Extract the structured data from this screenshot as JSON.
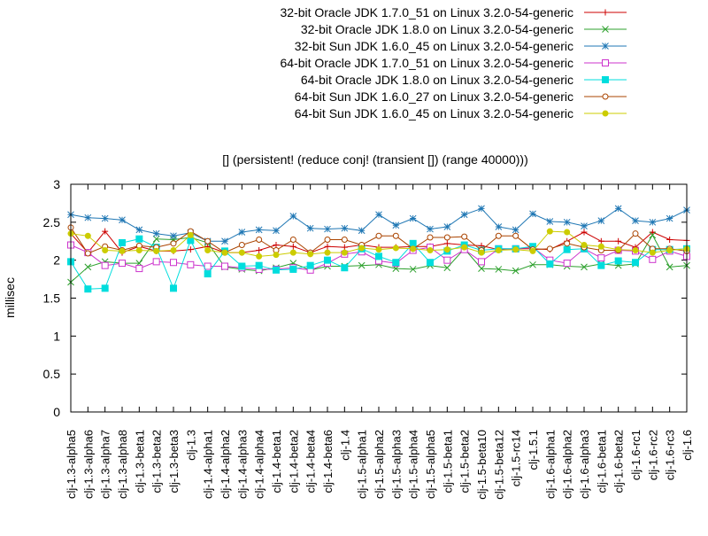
{
  "chart_data": {
    "type": "line",
    "title": "[] (persistent! (reduce conj! (transient []) (range 40000)))",
    "xlabel": "",
    "ylabel": "millisec",
    "ylim": [
      0,
      3
    ],
    "yticks": [
      "0",
      "0.5",
      "1",
      "1.5",
      "2",
      "2.5",
      "3"
    ],
    "grid": false,
    "legend_position": "top-right",
    "categories": [
      "clj-1.3-alpha5",
      "clj-1.3-alpha6",
      "clj-1.3-alpha7",
      "clj-1.3-alpha8",
      "clj-1.3-beta1",
      "clj-1.3-beta2",
      "clj-1.3-beta3",
      "clj-1.3",
      "clj-1.4-alpha1",
      "clj-1.4-alpha2",
      "clj-1.4-alpha3",
      "clj-1.4-alpha4",
      "clj-1.4-beta1",
      "clj-1.4-beta2",
      "clj-1.4-beta4",
      "clj-1.4-beta6",
      "clj-1.4",
      "clj-1.5-alpha1",
      "clj-1.5-alpha2",
      "clj-1.5-alpha3",
      "clj-1.5-alpha4",
      "clj-1.5-alpha5",
      "clj-1.5-beta1",
      "clj-1.5-beta2",
      "clj-1.5-beta10",
      "clj-1.5-beta12",
      "clj-1.5-rc14",
      "clj-1.5.1",
      "clj-1.6-alpha1",
      "clj-1.6-alpha2",
      "clj-1.6-alpha3",
      "clj-1.6-beta1",
      "clj-1.6-beta2",
      "clj-1.6-rc1",
      "clj-1.6-rc2",
      "clj-1.6-rc3",
      "clj-1.6"
    ],
    "tick_labels_shown": [
      "clj-1.3-alpha5",
      "clj-1.3-alpha6",
      "clj-1.3-alpha7",
      "clj-1.3-alpha8",
      "clj-1.3-beta1",
      "clj-1.3-beta2",
      "clj-1.3-beta3",
      "clj-1.3",
      "clj-1.4-alpha1",
      "clj-1.4-alpha2",
      "clj-1.4-alpha3",
      "clj-1.4-alpha4",
      "clj-1.4-beta1",
      "clj-1.4-beta2",
      "clj-1.4-beta4",
      "clj-1.4-beta6",
      "clj-1.4",
      "clj-1.5-alpha1",
      "clj-1.5-alpha2",
      "clj-1.5-alpha3",
      "clj-1.5-alpha4",
      "clj-1.5-alpha5",
      "clj-1.5-beta1",
      "clj-1.5-beta2",
      "clj-1.5-beta10",
      "clj-1.5-beta12",
      "clj-1.5-rc14",
      "clj-1.5.1",
      "clj-1.6-alpha1",
      "clj-1.6-alpha2",
      "clj-1.6-alpha3",
      "clj-1.6-beta1",
      "clj-1.6-beta2",
      "clj-1.6-rc1",
      "clj-1.6-rc2",
      "clj-1.6-rc3",
      "clj-1.6"
    ],
    "series": [
      {
        "name": "32-bit Oracle JDK 1.7.0_51 on Linux 3.2.0-54-generic",
        "color": "#cc0000",
        "marker": "plus",
        "values": [
          2.35,
          2.1,
          2.38,
          2.1,
          2.18,
          2.12,
          2.12,
          2.14,
          2.18,
          2.1,
          2.1,
          2.13,
          2.2,
          2.18,
          2.1,
          2.18,
          2.17,
          2.2,
          2.17,
          2.17,
          2.18,
          2.18,
          2.22,
          2.2,
          2.19,
          2.14,
          2.15,
          2.15,
          2.14,
          2.25,
          2.37,
          2.25,
          2.25,
          2.17,
          2.37,
          2.27,
          2.26
        ]
      },
      {
        "name": "32-bit Oracle JDK 1.8.0 on Linux 3.2.0-54-generic",
        "color": "#2ca02c",
        "marker": "cross",
        "values": [
          1.71,
          1.91,
          1.98,
          1.96,
          1.96,
          2.28,
          2.27,
          2.3,
          2.23,
          1.91,
          1.88,
          1.86,
          1.9,
          1.96,
          1.87,
          1.92,
          1.92,
          1.93,
          1.94,
          1.89,
          1.88,
          1.93,
          1.9,
          2.15,
          1.89,
          1.88,
          1.86,
          1.94,
          1.94,
          1.92,
          1.91,
          1.95,
          1.93,
          1.95,
          2.33,
          1.91,
          1.93
        ]
      },
      {
        "name": "32-bit Sun JDK 1.6.0_45 on Linux 3.2.0-54-generic",
        "color": "#1f77b4",
        "marker": "star",
        "values": [
          2.6,
          2.56,
          2.55,
          2.53,
          2.4,
          2.35,
          2.32,
          2.36,
          2.25,
          2.25,
          2.37,
          2.4,
          2.39,
          2.58,
          2.42,
          2.41,
          2.42,
          2.39,
          2.6,
          2.46,
          2.55,
          2.41,
          2.44,
          2.6,
          2.68,
          2.44,
          2.4,
          2.61,
          2.51,
          2.5,
          2.45,
          2.52,
          2.68,
          2.52,
          2.5,
          2.55,
          2.66
        ]
      },
      {
        "name": "64-bit Oracle JDK 1.7.0_51 on Linux 3.2.0-54-generic",
        "color": "#cc33cc",
        "marker": "open-square",
        "values": [
          2.2,
          2.1,
          1.93,
          1.96,
          1.89,
          1.98,
          1.97,
          1.94,
          1.92,
          1.92,
          1.9,
          1.88,
          1.88,
          1.9,
          1.87,
          1.96,
          2.08,
          2.11,
          1.99,
          1.96,
          2.13,
          2.17,
          2.0,
          2.14,
          1.98,
          2.15,
          2.15,
          2.17,
          2.0,
          1.96,
          2.15,
          2.03,
          2.13,
          2.12,
          2.01,
          2.12,
          2.05
        ]
      },
      {
        "name": "64-bit Oracle JDK 1.8.0 on Linux 3.2.0-54-generic",
        "color": "#00dddd",
        "marker": "filled-square",
        "values": [
          1.98,
          1.62,
          1.63,
          2.23,
          2.28,
          2.17,
          1.63,
          2.26,
          1.82,
          2.12,
          1.92,
          1.93,
          1.87,
          1.88,
          1.93,
          2.0,
          1.9,
          2.15,
          2.05,
          1.97,
          2.22,
          1.97,
          2.12,
          2.2,
          2.13,
          2.15,
          2.15,
          2.18,
          1.95,
          2.14,
          2.15,
          1.93,
          1.99,
          1.97,
          2.14,
          2.14,
          2.15
        ]
      },
      {
        "name": "64-bit Sun JDK 1.6.0_27 on Linux 3.2.0-54-generic",
        "color": "#aa4400",
        "marker": "open-circle",
        "values": [
          2.43,
          2.09,
          2.18,
          2.13,
          2.19,
          2.17,
          2.22,
          2.38,
          2.25,
          2.1,
          2.2,
          2.27,
          2.13,
          2.27,
          2.1,
          2.27,
          2.27,
          2.2,
          2.32,
          2.32,
          2.15,
          2.3,
          2.3,
          2.31,
          2.13,
          2.32,
          2.32,
          2.14,
          2.15,
          2.22,
          2.17,
          2.13,
          2.13,
          2.35,
          2.15,
          2.15,
          2.12
        ]
      },
      {
        "name": "64-bit Sun JDK 1.6.0_45 on Linux 3.2.0-54-generic",
        "color": "#cccc00",
        "marker": "filled-circle",
        "values": [
          2.35,
          2.32,
          2.13,
          2.12,
          2.13,
          2.12,
          2.13,
          2.33,
          2.13,
          2.1,
          2.1,
          2.05,
          2.07,
          2.1,
          2.08,
          2.1,
          2.1,
          2.16,
          2.14,
          2.16,
          2.15,
          2.13,
          2.14,
          2.17,
          2.1,
          2.13,
          2.14,
          2.12,
          2.38,
          2.37,
          2.2,
          2.18,
          2.14,
          2.13,
          2.1,
          2.13,
          2.15
        ]
      }
    ]
  }
}
